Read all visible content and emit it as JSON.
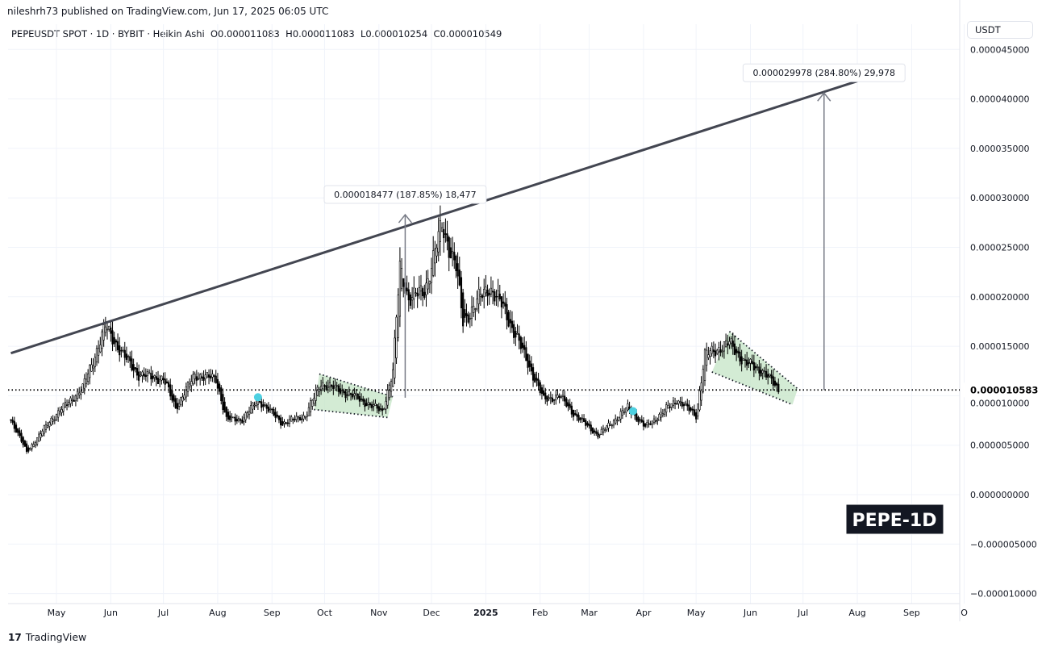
{
  "header": {
    "published": "nileshrh73 published on TradingView.com, Jun 17, 2025 06:05 UTC",
    "symbol_line": "PEPEUSDT SPOT · 1D · BYBIT · Heikin Ashi  O0.000011083  H0.000011083  L0.000010254  C0.000010549"
  },
  "currency_button": "USDT",
  "footer": {
    "brand": "TradingView"
  },
  "chart_data": {
    "type": "candlestick",
    "style": "Heikin Ashi",
    "ohlc_last": {
      "open": 1.1083e-05,
      "high": 1.1083e-05,
      "low": 1.0254e-05,
      "close": 1.0549e-05
    },
    "y_ticks": [
      "0.000045000",
      "0.000040000",
      "0.000035000",
      "0.000030000",
      "0.000025000",
      "0.000020000",
      "0.000015000",
      "0.000010000",
      "0.000005000",
      "0.000000000",
      "−0.000005000",
      "−0.000010000"
    ],
    "y_tick_values": [
      4.5e-05,
      4e-05,
      3.5e-05,
      3e-05,
      2.5e-05,
      2e-05,
      1.5e-05,
      1e-05,
      5e-06,
      0,
      -5e-06,
      -1e-05
    ],
    "x_ticks": [
      [
        "May",
        "2024-05-01"
      ],
      [
        "Jun",
        "2024-06-01"
      ],
      [
        "Jul",
        "2024-07-01"
      ],
      [
        "Aug",
        "2024-08-01"
      ],
      [
        "Sep",
        "2024-09-01"
      ],
      [
        "Oct",
        "2024-10-01"
      ],
      [
        "Nov",
        "2024-11-01"
      ],
      [
        "Dec",
        "2024-12-01"
      ],
      [
        "2025",
        "2025-01-01"
      ],
      [
        "Feb",
        "2025-02-01"
      ],
      [
        "Mar",
        "2025-03-01"
      ],
      [
        "Apr",
        "2025-04-01"
      ],
      [
        "May",
        "2025-05-01"
      ],
      [
        "Jun",
        "2025-06-01"
      ],
      [
        "Jul",
        "2025-07-01"
      ],
      [
        "Aug",
        "2025-08-01"
      ],
      [
        "Sep",
        "2025-09-01"
      ],
      [
        "O",
        "2025-10-01"
      ]
    ],
    "price_path": [
      [
        "2024-04-05",
        7.6e-06
      ],
      [
        "2024-04-14",
        4.3e-06
      ],
      [
        "2024-04-28",
        7.6e-06
      ],
      [
        "2024-05-16",
        1.08e-05
      ],
      [
        "2024-05-29",
        1.7e-05
      ],
      [
        "2024-06-08",
        1.41e-05
      ],
      [
        "2024-06-17",
        1.21e-05
      ],
      [
        "2024-07-01",
        1.17e-05
      ],
      [
        "2024-07-08",
        8.8e-06
      ],
      [
        "2024-07-19",
        1.21e-05
      ],
      [
        "2024-07-31",
        1.17e-05
      ],
      [
        "2024-08-06",
        7.6e-06
      ],
      [
        "2024-08-15",
        7.6e-06
      ],
      [
        "2024-08-24",
        9.6e-06
      ],
      [
        "2024-09-07",
        7.2e-06
      ],
      [
        "2024-09-20",
        8e-06
      ],
      [
        "2024-09-29",
        1.13e-05
      ],
      [
        "2024-10-17",
        1e-05
      ],
      [
        "2024-11-03",
        8.4e-06
      ],
      [
        "2024-11-09",
        1.25e-05
      ],
      [
        "2024-11-13",
        2.3e-05
      ],
      [
        "2024-11-18",
        1.98e-05
      ],
      [
        "2024-11-27",
        2.06e-05
      ],
      [
        "2024-12-07",
        2.72e-05
      ],
      [
        "2024-12-15",
        2.3e-05
      ],
      [
        "2024-12-19",
        1.74e-05
      ],
      [
        "2024-12-28",
        1.98e-05
      ],
      [
        "2025-01-03",
        2.1e-05
      ],
      [
        "2025-01-11",
        1.89e-05
      ],
      [
        "2025-01-25",
        1.33e-05
      ],
      [
        "2025-02-03",
        9.6e-06
      ],
      [
        "2025-02-12",
        1e-05
      ],
      [
        "2025-02-21",
        8e-06
      ],
      [
        "2025-03-06",
        6e-06
      ],
      [
        "2025-03-23",
        8.8e-06
      ],
      [
        "2025-04-02",
        6.8e-06
      ],
      [
        "2025-04-20",
        9.6e-06
      ],
      [
        "2025-05-01",
        8e-06
      ],
      [
        "2025-05-06",
        1.41e-05
      ],
      [
        "2025-05-20",
        1.53e-05
      ],
      [
        "2025-05-29",
        1.33e-05
      ],
      [
        "2025-06-08",
        1.25e-05
      ],
      [
        "2025-06-17",
        1.06e-05
      ]
    ],
    "trendline": [
      [
        "2024-04-05",
        1.43e-05
      ],
      [
        "2025-08-01",
        4.18e-05
      ]
    ],
    "horizontal_level": {
      "value": 1.0583e-05,
      "label": "0.000010583"
    },
    "measurements": [
      {
        "date": "2024-11-16",
        "from": 9.8e-06,
        "to": 2.83e-05,
        "label": "0.000018477 (187.85%) 18,477"
      },
      {
        "date": "2025-07-13",
        "from": 1.0583e-05,
        "to": 4.06e-05,
        "label": "0.000029978 (284.80%) 29,978"
      }
    ],
    "falling_wedges": [
      {
        "top": [
          [
            "2024-09-28",
            1.22e-05
          ],
          [
            "2024-11-09",
            9.9e-06
          ]
        ],
        "bottom": [
          [
            "2024-09-25",
            8.6e-06
          ],
          [
            "2024-11-06",
            7.8e-06
          ]
        ]
      },
      {
        "top": [
          [
            "2025-05-20",
            1.65e-05
          ],
          [
            "2025-06-28",
            1.07e-05
          ]
        ],
        "bottom": [
          [
            "2025-05-10",
            1.24e-05
          ],
          [
            "2025-06-25",
            9.1e-06
          ]
        ]
      }
    ],
    "signal_dots": [
      "2024-08-24",
      "2025-03-26"
    ],
    "fill_color": "#c8e6c9",
    "dot_color": "#4dd0e1",
    "watermark": "PEPE-1D"
  }
}
